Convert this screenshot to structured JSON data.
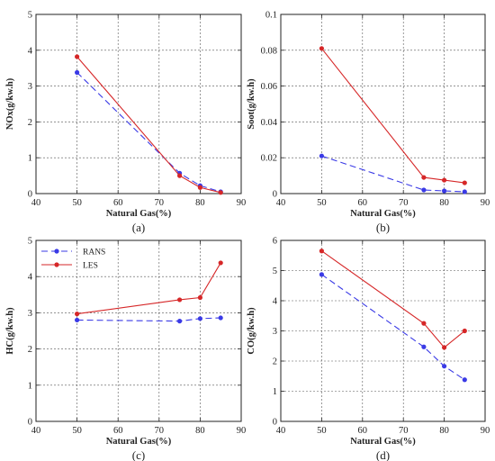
{
  "chart_data": [
    {
      "type": "line",
      "panel_label": "(a)",
      "xlabel": "Natural Gas(%)",
      "ylabel": "NOx(g/kw.h)",
      "xlim": [
        40,
        90
      ],
      "ylim": [
        0,
        5
      ],
      "xticks": [
        "40",
        "50",
        "60",
        "70",
        "80",
        "90"
      ],
      "yticks": [
        "0",
        "1",
        "2",
        "3",
        "4",
        "5"
      ],
      "grid": true,
      "legend": false,
      "series": [
        {
          "x": [
            50,
            75,
            80,
            85
          ],
          "values": [
            3.38,
            0.57,
            0.22,
            0.05
          ],
          "color": "#3a3ae6",
          "style": "dashed"
        },
        {
          "x": [
            50,
            75,
            80,
            85
          ],
          "values": [
            3.82,
            0.5,
            0.17,
            0.03
          ],
          "color": "#d62728",
          "style": "solid"
        }
      ]
    },
    {
      "type": "line",
      "panel_label": "(b)",
      "xlabel": "Natural Gas(%)",
      "ylabel": "Soot(g/kw.h)",
      "xlim": [
        40,
        90
      ],
      "ylim": [
        0,
        0.1
      ],
      "xticks": [
        "40",
        "50",
        "60",
        "70",
        "80",
        "90"
      ],
      "yticks": [
        "0",
        "0.02",
        "0.04",
        "0.06",
        "0.08",
        "0.1"
      ],
      "grid": true,
      "legend": false,
      "series": [
        {
          "x": [
            50,
            75,
            80,
            85
          ],
          "values": [
            0.021,
            0.002,
            0.0015,
            0.001
          ],
          "color": "#3a3ae6",
          "style": "dashed"
        },
        {
          "x": [
            50,
            75,
            80,
            85
          ],
          "values": [
            0.081,
            0.009,
            0.0075,
            0.006
          ],
          "color": "#d62728",
          "style": "solid"
        }
      ]
    },
    {
      "type": "line",
      "panel_label": "(c)",
      "xlabel": "Natural Gas(%)",
      "ylabel": "HC(g/kw.h)",
      "xlim": [
        40,
        90
      ],
      "ylim": [
        0,
        5
      ],
      "xticks": [
        "40",
        "50",
        "60",
        "70",
        "80",
        "90"
      ],
      "yticks": [
        "0",
        "1",
        "2",
        "3",
        "4",
        "5"
      ],
      "grid": true,
      "legend": true,
      "legend_position": "top-left",
      "series": [
        {
          "name": "RANS",
          "x": [
            50,
            75,
            80,
            85
          ],
          "values": [
            2.8,
            2.77,
            2.84,
            2.86
          ],
          "color": "#3a3ae6",
          "style": "dashed"
        },
        {
          "name": "LES",
          "x": [
            50,
            75,
            80,
            85
          ],
          "values": [
            2.97,
            3.36,
            3.42,
            4.38
          ],
          "color": "#d62728",
          "style": "solid"
        }
      ]
    },
    {
      "type": "line",
      "panel_label": "(d)",
      "xlabel": "Natural Gas(%)",
      "ylabel": "CO(g/kw.h)",
      "xlim": [
        40,
        90
      ],
      "ylim": [
        0,
        6
      ],
      "xticks": [
        "40",
        "50",
        "60",
        "70",
        "80",
        "90"
      ],
      "yticks": [
        "0",
        "1",
        "2",
        "3",
        "4",
        "5",
        "6"
      ],
      "grid": true,
      "legend": false,
      "series": [
        {
          "x": [
            50,
            75,
            80,
            85
          ],
          "values": [
            4.87,
            2.47,
            1.83,
            1.38
          ],
          "color": "#3a3ae6",
          "style": "dashed"
        },
        {
          "x": [
            50,
            75,
            80,
            85
          ],
          "values": [
            5.65,
            3.25,
            2.45,
            3.0
          ],
          "color": "#d62728",
          "style": "solid"
        }
      ]
    }
  ]
}
